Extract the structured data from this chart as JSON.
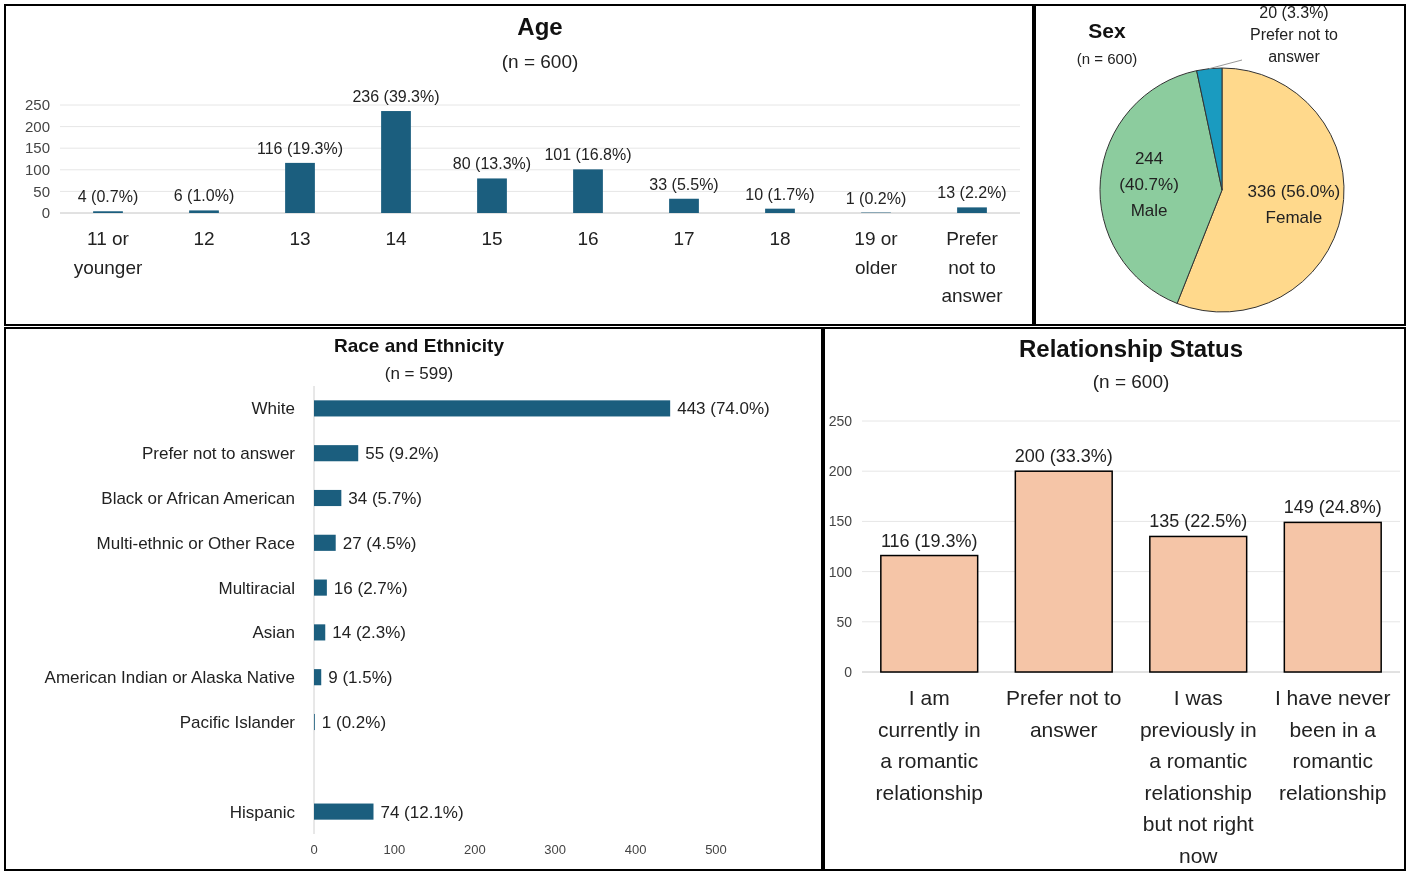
{
  "chart_data": [
    {
      "type": "bar",
      "title": "Age",
      "subtitle": "(n = 600)",
      "categories": [
        "11 or younger",
        "12",
        "13",
        "14",
        "15",
        "16",
        "17",
        "18",
        "19 or older",
        "Prefer not to answer"
      ],
      "values": [
        4,
        6,
        116,
        236,
        80,
        101,
        33,
        10,
        1,
        13
      ],
      "value_labels": [
        "4 (0.7%)",
        "6 (1.0%)",
        "116 (19.3%)",
        "236 (39.3%)",
        "80 (13.3%)",
        "101 (16.8%)",
        "33 (5.5%)",
        "10 (1.7%)",
        "1 (0.2%)",
        "13 (2.2%)"
      ],
      "color": "#1b5e7e",
      "ylim": [
        0,
        250
      ],
      "yticks": [
        0,
        50,
        100,
        150,
        200,
        250
      ],
      "grid": "y"
    },
    {
      "type": "pie",
      "title": "Sex",
      "subtitle": "(n = 600)",
      "categories": [
        "Female",
        "Male",
        "Prefer not to answer"
      ],
      "values": [
        336,
        244,
        20
      ],
      "value_labels": [
        "336 (56.0%)",
        "244\n(40.7%)",
        "20 (3.3%)"
      ],
      "colors": [
        "#ffd98c",
        "#8ccc9e",
        "#1a9bc0"
      ]
    },
    {
      "type": "bar",
      "orientation": "horizontal",
      "title": "Race and Ethnicity",
      "subtitle": "(n = 599)",
      "categories": [
        "White",
        "Prefer not to answer",
        "Black or African American",
        "Multi-ethnic or Other Race",
        "Multiracial",
        "Asian",
        "American Indian or Alaska Native",
        "Pacific Islander",
        null,
        "Hispanic"
      ],
      "values": [
        443,
        55,
        34,
        27,
        16,
        14,
        9,
        1,
        null,
        74
      ],
      "value_labels": [
        "443 (74.0%)",
        "55 (9.2%)",
        "34 (5.7%)",
        "27 (4.5%)",
        "16 (2.7%)",
        "14 (2.3%)",
        "9 (1.5%)",
        "1 (0.2%)",
        null,
        "74 (12.1%)"
      ],
      "color": "#1b5e7e",
      "xlim": [
        0,
        500
      ],
      "xticks": [
        0,
        100,
        200,
        300,
        400,
        500
      ]
    },
    {
      "type": "bar",
      "title": "Relationship Status",
      "subtitle": "(n = 600)",
      "categories": [
        "I am currently in a romantic relationship",
        "Prefer not to answer",
        "I was previously in a romantic relationship but not right now",
        "I have never been in a romantic relationship"
      ],
      "values": [
        116,
        200,
        135,
        149
      ],
      "value_labels": [
        "116 (19.3%)",
        "200 (33.3%)",
        "135 (22.5%)",
        "149 (24.8%)"
      ],
      "color": "#f5c5a7",
      "ylim": [
        0,
        250
      ],
      "yticks": [
        0,
        50,
        100,
        150,
        200,
        250
      ],
      "grid": "y"
    }
  ]
}
